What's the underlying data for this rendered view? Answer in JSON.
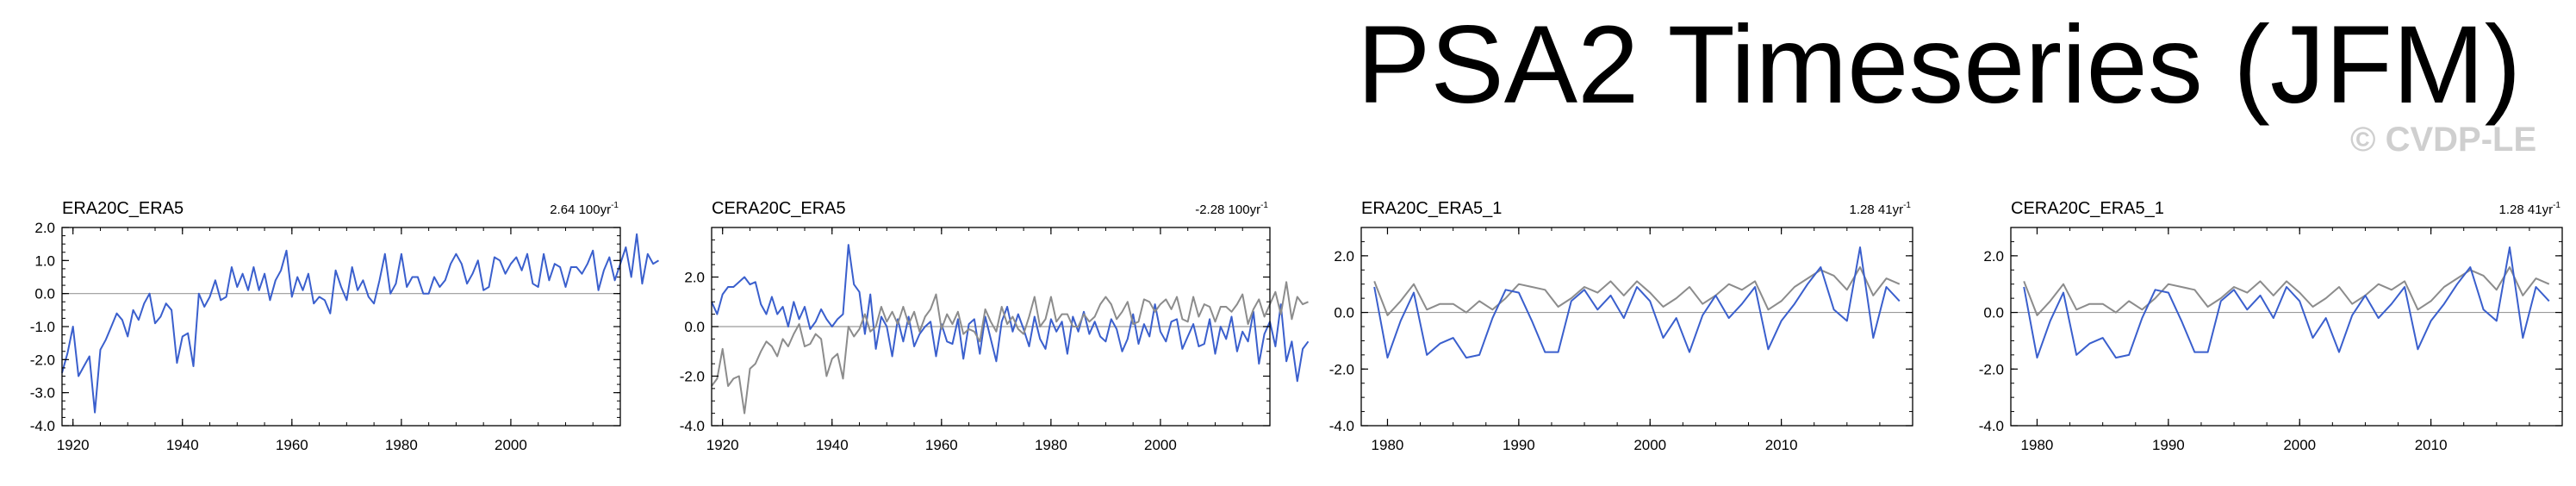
{
  "title": "PSA2 Timeseries (JFM)",
  "watermark": "© CVDP-LE",
  "colors": {
    "primary": "#3a5fcd",
    "reference": "#8c8c8c",
    "zero_line": "#9a9a9a",
    "axis": "#000000"
  },
  "chart_data": [
    {
      "type": "line",
      "title": "ERA20C_ERA5",
      "trend_value": "2.64",
      "trend_unit": "100yr",
      "trend_exp": "-1",
      "xlim": [
        1918,
        2020
      ],
      "ylim": [
        -4,
        2
      ],
      "xticks": [
        1920,
        1940,
        1960,
        1980,
        2000
      ],
      "xtick_labels": [
        "1920",
        "1940",
        "1960",
        "1980",
        "2000"
      ],
      "yticks": [
        -4,
        -3,
        -2,
        -1,
        0,
        1,
        2
      ],
      "ytick_labels": [
        "-4.0",
        "-3.0",
        "-2.0",
        "-1.0",
        "0.0",
        "1.0",
        "2.0"
      ],
      "x_start": 1918,
      "series": [
        {
          "name": "ERA20C_ERA5",
          "color": "#3a5fcd",
          "values": [
            -2.4,
            -1.8,
            -1.0,
            -2.5,
            -2.2,
            -1.9,
            -3.6,
            -1.7,
            -1.4,
            -1.0,
            -0.6,
            -0.8,
            -1.3,
            -0.5,
            -0.8,
            -0.3,
            0.0,
            -0.9,
            -0.7,
            -0.3,
            -0.5,
            -2.1,
            -1.3,
            -1.2,
            -2.2,
            0.0,
            -0.4,
            -0.1,
            0.4,
            -0.2,
            -0.1,
            0.8,
            0.2,
            0.6,
            0.1,
            0.8,
            0.1,
            0.6,
            -0.2,
            0.4,
            0.7,
            1.3,
            -0.1,
            0.5,
            0.1,
            0.6,
            -0.3,
            -0.1,
            -0.2,
            -0.6,
            0.7,
            0.2,
            -0.2,
            0.8,
            0.1,
            0.4,
            -0.1,
            -0.3,
            0.4,
            1.2,
            0.0,
            0.3,
            1.2,
            0.2,
            0.5,
            0.5,
            0.0,
            0.0,
            0.5,
            0.2,
            0.4,
            0.9,
            1.2,
            0.9,
            0.3,
            0.6,
            1.0,
            0.1,
            0.2,
            1.1,
            1.0,
            0.6,
            0.9,
            1.1,
            0.7,
            1.2,
            0.3,
            0.2,
            1.2,
            0.4,
            0.9,
            0.8,
            0.2,
            0.8,
            0.8,
            0.6,
            0.9,
            1.3,
            0.1,
            0.7,
            1.1,
            0.4,
            0.9,
            1.4,
            0.5,
            1.8,
            0.3,
            1.2,
            0.9,
            1.0
          ]
        }
      ]
    },
    {
      "type": "line",
      "title": "CERA20C_ERA5",
      "trend_value": "-2.28",
      "trend_unit": "100yr",
      "trend_exp": "-1",
      "xlim": [
        1918,
        2020
      ],
      "ylim": [
        -4,
        4
      ],
      "xticks": [
        1920,
        1940,
        1960,
        1980,
        2000
      ],
      "xtick_labels": [
        "1920",
        "1940",
        "1960",
        "1980",
        "2000"
      ],
      "yticks": [
        -4,
        -2,
        0,
        2
      ],
      "ytick_labels": [
        "-4.0",
        "-2.0",
        "0.0",
        "2.0"
      ],
      "x_start": 1918,
      "series": [
        {
          "name": "CERA20C_ERA5",
          "color": "#3a5fcd",
          "values": [
            1.0,
            0.5,
            1.3,
            1.6,
            1.6,
            1.8,
            2.0,
            1.7,
            1.8,
            0.9,
            0.5,
            1.2,
            0.5,
            0.8,
            0.0,
            1.0,
            0.3,
            0.8,
            -0.1,
            0.2,
            0.7,
            0.3,
            0.0,
            0.3,
            0.5,
            3.3,
            1.7,
            1.4,
            -0.3,
            1.3,
            -0.9,
            0.4,
            0.0,
            -1.2,
            0.3,
            -0.6,
            0.4,
            -0.8,
            -0.3,
            0.0,
            0.2,
            -1.2,
            0.1,
            -0.6,
            -0.7,
            0.3,
            -1.3,
            0.1,
            0.3,
            -1.1,
            0.4,
            -0.5,
            -1.4,
            0.2,
            0.8,
            -0.2,
            0.5,
            -0.1,
            -0.8,
            0.4,
            -0.5,
            -0.9,
            0.3,
            -0.2,
            0.2,
            -1.1,
            0.4,
            -0.2,
            0.6,
            -0.3,
            0.2,
            -0.4,
            -0.6,
            0.3,
            -0.1,
            -1.0,
            -0.5,
            0.5,
            -0.7,
            0.1,
            -0.4,
            0.9,
            -0.2,
            -0.6,
            0.2,
            0.3,
            -0.9,
            -0.4,
            0.1,
            -0.8,
            -0.7,
            0.3,
            -1.1,
            0.0,
            -0.5,
            0.4,
            -1.0,
            -0.2,
            -0.6,
            0.6,
            -1.5,
            -0.3,
            0.2,
            -0.8,
            0.9,
            -1.4,
            -0.6,
            -2.2,
            -0.9,
            -0.6
          ]
        },
        {
          "name": "reference",
          "color": "#8c8c8c",
          "values": [
            -2.4,
            -2.1,
            -0.9,
            -2.4,
            -2.1,
            -2.0,
            -3.5,
            -1.7,
            -1.5,
            -1.0,
            -0.6,
            -0.8,
            -1.2,
            -0.5,
            -0.8,
            -0.3,
            0.1,
            -0.8,
            -0.7,
            -0.3,
            -0.5,
            -2.0,
            -1.3,
            -1.1,
            -2.1,
            0.0,
            -0.4,
            -0.1,
            0.5,
            -0.2,
            0.0,
            0.8,
            0.2,
            0.6,
            0.1,
            0.8,
            0.1,
            0.6,
            -0.2,
            0.4,
            0.7,
            1.3,
            -0.1,
            0.5,
            0.1,
            0.6,
            -0.3,
            -0.1,
            -0.2,
            -0.6,
            0.7,
            0.2,
            -0.2,
            0.8,
            0.1,
            0.4,
            -0.1,
            -0.3,
            0.4,
            1.2,
            0.0,
            0.3,
            1.2,
            0.2,
            0.5,
            0.5,
            0.0,
            0.0,
            0.5,
            0.2,
            0.4,
            0.9,
            1.2,
            0.9,
            0.3,
            0.6,
            1.0,
            0.1,
            0.2,
            1.1,
            1.0,
            0.6,
            0.9,
            1.1,
            0.7,
            1.2,
            0.3,
            0.2,
            1.2,
            0.4,
            0.9,
            0.8,
            0.2,
            0.8,
            0.8,
            0.6,
            0.9,
            1.3,
            0.1,
            0.7,
            1.1,
            0.4,
            0.9,
            1.4,
            0.5,
            1.8,
            0.3,
            1.2,
            0.9,
            1.0
          ]
        }
      ]
    },
    {
      "type": "line",
      "title": "ERA20C_ERA5_1",
      "trend_value": "1.28",
      "trend_unit": "41yr",
      "trend_exp": "-1",
      "xlim": [
        1978,
        2020
      ],
      "ylim": [
        -4,
        3
      ],
      "xticks": [
        1980,
        1990,
        2000,
        2010
      ],
      "xtick_labels": [
        "1980",
        "1990",
        "2000",
        "2010"
      ],
      "yticks": [
        -4,
        -2,
        0,
        2
      ],
      "ytick_labels": [
        "-4.0",
        "-2.0",
        "0.0",
        "2.0"
      ],
      "x_start": 1979,
      "series": [
        {
          "name": "reference",
          "color": "#8c8c8c",
          "values": [
            1.1,
            -0.1,
            0.4,
            1.0,
            0.1,
            0.3,
            0.3,
            0.0,
            0.4,
            0.1,
            0.5,
            1.0,
            0.9,
            0.8,
            0.2,
            0.5,
            0.9,
            0.7,
            1.1,
            0.6,
            1.1,
            0.7,
            0.2,
            0.5,
            0.9,
            0.3,
            0.6,
            1.0,
            0.8,
            1.1,
            0.1,
            0.4,
            0.9,
            1.2,
            1.5,
            1.3,
            0.8,
            1.6,
            0.6,
            1.2,
            1.0
          ]
        },
        {
          "name": "ERA20C_ERA5_1",
          "color": "#3a5fcd",
          "values": [
            0.9,
            -1.6,
            -0.3,
            0.7,
            -1.5,
            -1.1,
            -0.9,
            -1.6,
            -1.5,
            -0.2,
            0.8,
            0.7,
            -0.3,
            -1.4,
            -1.4,
            0.4,
            0.8,
            0.1,
            0.6,
            -0.2,
            0.9,
            0.4,
            -0.9,
            -0.2,
            -1.4,
            -0.1,
            0.6,
            -0.2,
            0.3,
            0.9,
            -1.3,
            -0.3,
            0.3,
            1.0,
            1.6,
            0.1,
            -0.3,
            2.3,
            -0.9,
            0.9,
            0.4
          ]
        }
      ]
    },
    {
      "type": "line",
      "title": "CERA20C_ERA5_1",
      "trend_value": "1.28",
      "trend_unit": "41yr",
      "trend_exp": "-1",
      "xlim": [
        1978,
        2020
      ],
      "ylim": [
        -4,
        3
      ],
      "xticks": [
        1980,
        1990,
        2000,
        2010
      ],
      "xtick_labels": [
        "1980",
        "1990",
        "2000",
        "2010"
      ],
      "yticks": [
        -4,
        -2,
        0,
        2
      ],
      "ytick_labels": [
        "-4.0",
        "-2.0",
        "0.0",
        "2.0"
      ],
      "x_start": 1979,
      "series": [
        {
          "name": "reference",
          "color": "#8c8c8c",
          "values": [
            1.1,
            -0.1,
            0.4,
            1.0,
            0.1,
            0.3,
            0.3,
            0.0,
            0.4,
            0.1,
            0.5,
            1.0,
            0.9,
            0.8,
            0.2,
            0.5,
            0.9,
            0.7,
            1.1,
            0.6,
            1.1,
            0.7,
            0.2,
            0.5,
            0.9,
            0.3,
            0.6,
            1.0,
            0.8,
            1.1,
            0.1,
            0.4,
            0.9,
            1.2,
            1.5,
            1.3,
            0.8,
            1.6,
            0.6,
            1.2,
            1.0
          ]
        },
        {
          "name": "CERA20C_ERA5_1",
          "color": "#3a5fcd",
          "values": [
            0.9,
            -1.6,
            -0.3,
            0.7,
            -1.5,
            -1.1,
            -0.9,
            -1.6,
            -1.5,
            -0.2,
            0.8,
            0.7,
            -0.3,
            -1.4,
            -1.4,
            0.4,
            0.8,
            0.1,
            0.6,
            -0.2,
            0.9,
            0.4,
            -0.9,
            -0.2,
            -1.4,
            -0.1,
            0.6,
            -0.2,
            0.3,
            0.9,
            -1.3,
            -0.3,
            0.3,
            1.0,
            1.6,
            0.1,
            -0.3,
            2.3,
            -0.9,
            0.9,
            0.4
          ]
        }
      ]
    }
  ]
}
